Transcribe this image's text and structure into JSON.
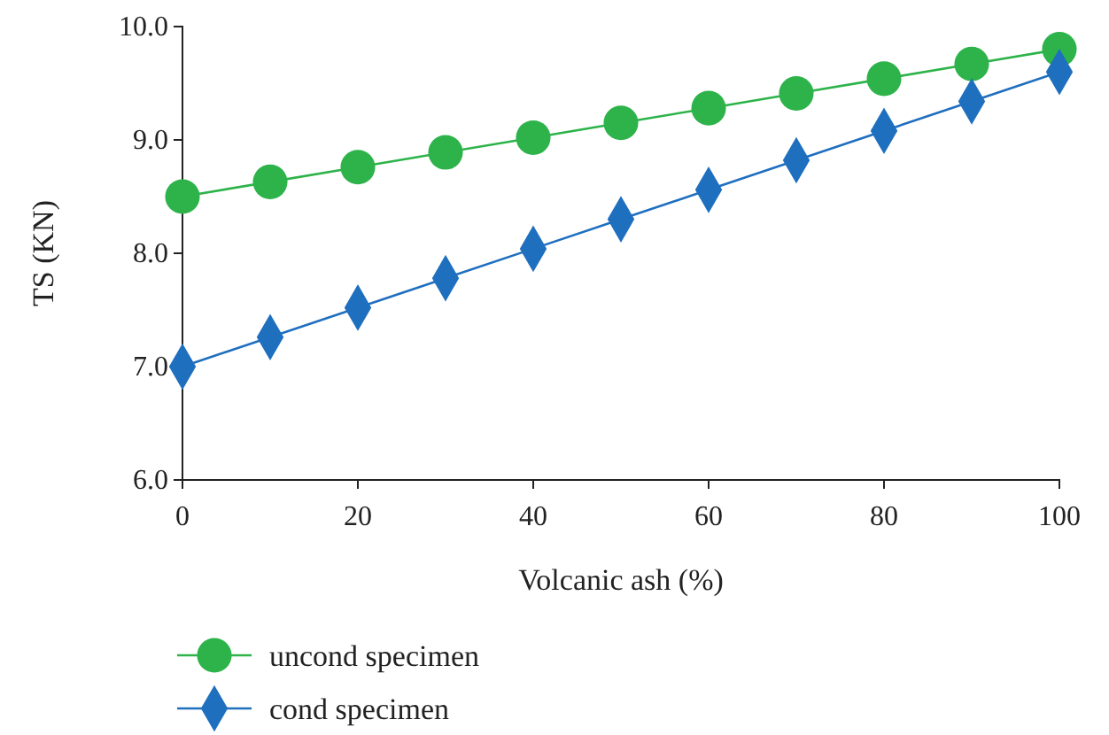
{
  "chart_data": {
    "type": "line",
    "xlabel": "Volcanic ash (%)",
    "ylabel": "TS (KN)",
    "x": [
      0,
      10,
      20,
      30,
      40,
      50,
      60,
      70,
      80,
      90,
      100
    ],
    "series": [
      {
        "name": "uncond specimen",
        "color": "#2db34a",
        "marker": "circle",
        "values": [
          8.5,
          8.63,
          8.76,
          8.89,
          9.02,
          9.15,
          9.28,
          9.41,
          9.54,
          9.67,
          9.8
        ]
      },
      {
        "name": "cond specimen",
        "color": "#1f6fbf",
        "marker": "diamond",
        "values": [
          7.0,
          7.26,
          7.52,
          7.78,
          8.04,
          8.3,
          8.56,
          8.82,
          9.08,
          9.34,
          9.6
        ]
      }
    ],
    "xlim": [
      0,
      100
    ],
    "xticks": [
      0,
      20,
      40,
      60,
      80,
      100
    ],
    "ylim": [
      6,
      10
    ],
    "yticks": [
      {
        "value": 6,
        "label": "6.0"
      },
      {
        "value": 7,
        "label": "7.0"
      },
      {
        "value": 8,
        "label": "8.0"
      },
      {
        "value": 9,
        "label": "9.0"
      },
      {
        "value": 10,
        "label": "10.0"
      }
    ],
    "legend": "bottom",
    "line_style": "solid"
  }
}
